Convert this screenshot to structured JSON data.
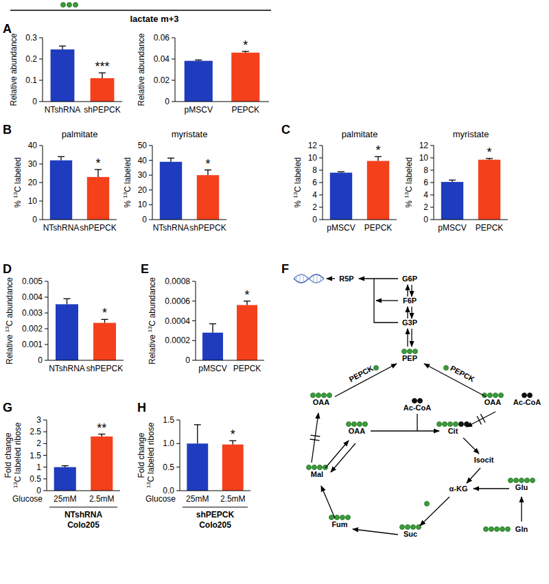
{
  "chart_data": [
    {
      "type": "bar",
      "panel": "A",
      "title": "lactate m+3",
      "ylabel": "Relative abundance",
      "categories": [
        "NTshRNA",
        "shPEPCK"
      ],
      "values": [
        0.245,
        0.11
      ],
      "errors": [
        0.016,
        0.025
      ],
      "colors": [
        "#1f3cbe",
        "#f5401c"
      ],
      "ylim": [
        0,
        0.3
      ],
      "yticks": [
        0,
        0.1,
        0.2,
        0.3
      ],
      "annotations": [
        {
          "category": "shPEPCK",
          "text": "***"
        }
      ]
    },
    {
      "type": "bar",
      "ylabel": "Relative abundance",
      "categories": [
        "pMSCV",
        "PEPCK"
      ],
      "values": [
        0.0383,
        0.046
      ],
      "errors": [
        0.0008,
        0.0012
      ],
      "colors": [
        "#1f3cbe",
        "#f5401c"
      ],
      "ylim": [
        0,
        0.06
      ],
      "yticks": [
        0,
        0.02,
        0.04,
        0.06
      ],
      "annotations": [
        {
          "category": "PEPCK",
          "text": "*"
        }
      ]
    },
    {
      "type": "bar",
      "panel": "B",
      "title": "palmitate",
      "ylabel": "% 13C labeled",
      "categories": [
        "NTshRNA",
        "shPEPCK"
      ],
      "values": [
        32,
        23
      ],
      "errors": [
        2,
        4
      ],
      "colors": [
        "#1f3cbe",
        "#f5401c"
      ],
      "ylim": [
        0,
        40
      ],
      "yticks": [
        0,
        10,
        20,
        30,
        40
      ],
      "annotations": [
        {
          "category": "shPEPCK",
          "text": "*"
        }
      ]
    },
    {
      "type": "bar",
      "title": "myristate",
      "ylabel": "% 13C labeled",
      "categories": [
        "NTshRNA",
        "shPEPCK"
      ],
      "values": [
        39,
        30
      ],
      "errors": [
        2.5,
        3.5
      ],
      "colors": [
        "#1f3cbe",
        "#f5401c"
      ],
      "ylim": [
        0,
        50
      ],
      "yticks": [
        0,
        10,
        20,
        30,
        40,
        50
      ],
      "annotations": [
        {
          "category": "shPEPCK",
          "text": "*"
        }
      ]
    },
    {
      "type": "bar",
      "panel": "C",
      "title": "palmitate",
      "ylabel": "% 13C labeled",
      "categories": [
        "pMSCV",
        "PEPCK"
      ],
      "values": [
        7.6,
        9.5
      ],
      "errors": [
        0.15,
        0.7
      ],
      "colors": [
        "#1f3cbe",
        "#f5401c"
      ],
      "ylim": [
        0,
        12
      ],
      "yticks": [
        0,
        2,
        4,
        6,
        8,
        10,
        12
      ],
      "annotations": [
        {
          "category": "PEPCK",
          "text": "*"
        }
      ]
    },
    {
      "type": "bar",
      "title": "myristate",
      "ylabel": "% 13C labeled",
      "categories": [
        "pMSCV",
        "PEPCK"
      ],
      "values": [
        6.1,
        9.7
      ],
      "errors": [
        0.3,
        0.2
      ],
      "colors": [
        "#1f3cbe",
        "#f5401c"
      ],
      "ylim": [
        0,
        12
      ],
      "yticks": [
        0,
        2,
        4,
        6,
        8,
        10,
        12
      ],
      "annotations": [
        {
          "category": "PEPCK",
          "text": "*"
        }
      ]
    },
    {
      "type": "bar",
      "panel": "D",
      "ylabel": "Relative 13C abundance",
      "categories": [
        "NTshRNA",
        "shPEPCK"
      ],
      "values": [
        0.00355,
        0.00237
      ],
      "errors": [
        0.00035,
        0.00022
      ],
      "colors": [
        "#1f3cbe",
        "#f5401c"
      ],
      "ylim": [
        0,
        0.005
      ],
      "yticks": [
        0,
        0.001,
        0.002,
        0.003,
        0.004,
        0.005
      ],
      "annotations": [
        {
          "category": "shPEPCK",
          "text": "*"
        }
      ]
    },
    {
      "type": "bar",
      "panel": "E",
      "ylabel": "Relative 13C abundance",
      "categories": [
        "pMSCV",
        "PEPCK"
      ],
      "values": [
        0.00028,
        0.00056
      ],
      "errors": [
        9e-05,
        4e-05
      ],
      "colors": [
        "#1f3cbe",
        "#f5401c"
      ],
      "ylim": [
        0,
        0.0008
      ],
      "yticks": [
        0,
        0.0002,
        0.0004,
        0.0006,
        0.0008
      ],
      "annotations": [
        {
          "category": "PEPCK",
          "text": "*"
        }
      ]
    },
    {
      "type": "bar",
      "panel": "G",
      "ylabel": "Fold change\n13C labeled ribose",
      "xlabel": "Glucose",
      "categories": [
        "25mM",
        "2.5mM"
      ],
      "values": [
        1.0,
        2.3
      ],
      "errors": [
        0.06,
        0.1
      ],
      "colors": [
        "#1f3cbe",
        "#f5401c"
      ],
      "ylim": [
        0,
        3
      ],
      "yticks": [
        0,
        0.5,
        1,
        1.5,
        2,
        2.5,
        3
      ],
      "annotations": [
        {
          "category": "2.5mM",
          "text": "**"
        }
      ],
      "group_labels": [
        "NTshRNA",
        "Colo205"
      ]
    },
    {
      "type": "bar",
      "panel": "H",
      "ylabel": "Fold change\n13C labeled ribose",
      "xlabel": "Glucose",
      "categories": [
        "25mM",
        "2.5mM"
      ],
      "values": [
        1.0,
        0.98
      ],
      "errors": [
        0.4,
        0.08
      ],
      "colors": [
        "#1f3cbe",
        "#f5401c"
      ],
      "ylim": [
        0,
        1.5
      ],
      "yticks": [
        {
          "value": 0,
          "label": "0.0"
        },
        0.5,
        {
          "value": 1,
          "label": "1.0"
        },
        1.5
      ],
      "annotations": [
        {
          "category": "2.5mM",
          "text": "*"
        }
      ],
      "group_labels": [
        "shPEPCK",
        "Colo205"
      ]
    }
  ],
  "diagram": {
    "panel": "F",
    "nodes": [
      {
        "label": "R5P"
      },
      {
        "label": "G6P"
      },
      {
        "label": "F6P"
      },
      {
        "label": "G3P"
      },
      {
        "label": "PEP",
        "labeled": 3
      },
      {
        "label": "OAA",
        "labeled": 4
      },
      {
        "label": "OAA",
        "labeled": 4
      },
      {
        "label": "Ac-CoA",
        "unlabeled": 2
      },
      {
        "label": "Ac-CoA",
        "unlabeled": 2
      },
      {
        "label": "OAA",
        "labeled": 4
      },
      {
        "label": "Cit",
        "labeled": 4,
        "unlabeled": 2
      },
      {
        "label": "Isocit"
      },
      {
        "label": "α-KG"
      },
      {
        "label": "Glu",
        "labeled": 5
      },
      {
        "label": "Gln",
        "labeled": 5
      },
      {
        "label": "Suc",
        "labeled": 4
      },
      {
        "label": "Fum",
        "labeled": 4
      },
      {
        "label": "Mal",
        "labeled": 4
      }
    ],
    "enzymes": [
      "PEPCK",
      "PEPCK"
    ]
  }
}
